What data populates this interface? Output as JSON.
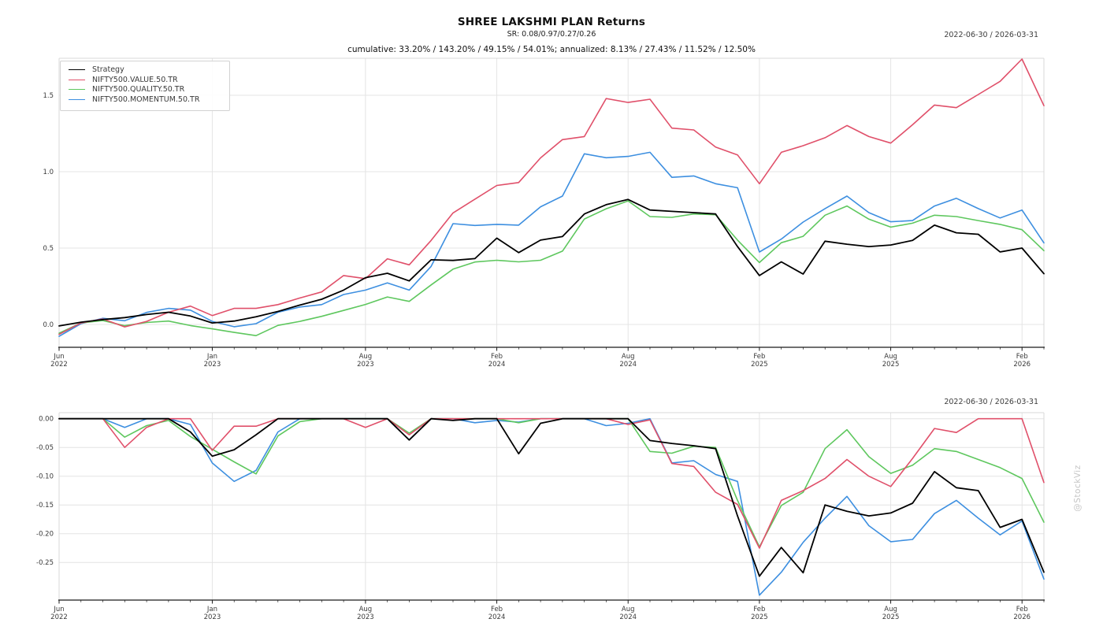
{
  "header": {
    "title": "SHREE LAKSHMI PLAN Returns",
    "sr_line": "SR: 0.08/0.97/0.27/0.26",
    "stats_line": "cumulative: 33.20% / 143.20% / 49.15% / 54.01%; annualized: 8.13% / 27.43% / 11.52% / 12.50%"
  },
  "ranges": {
    "top": "2022-06-30 / 2026-03-31",
    "bottom": "2022-06-30 / 2026-03-31"
  },
  "watermark": "@StockViz",
  "legend": {
    "entries": [
      {
        "label": "Strategy",
        "color": "#000000"
      },
      {
        "label": "NIFTY500.VALUE.50.TR",
        "color": "#e0506a"
      },
      {
        "label": "NIFTY500.QUALITY.50.TR",
        "color": "#5ec75e"
      },
      {
        "label": "NIFTY500.MOMENTUM.50.TR",
        "color": "#3d8fe0"
      }
    ]
  },
  "chart_data": [
    {
      "type": "line",
      "name": "cumulative-returns",
      "title": "SHREE LAKSHMI PLAN Returns",
      "xlabel": "",
      "ylabel": "",
      "ylim": [
        -0.12,
        1.78
      ],
      "grid": true,
      "legend_position": "upper-left",
      "x": [
        "2022-06",
        "2022-07",
        "2022-08",
        "2022-09",
        "2022-10",
        "2022-11",
        "2022-12",
        "2023-01",
        "2023-02",
        "2023-03",
        "2023-04",
        "2023-05",
        "2023-06",
        "2023-07",
        "2023-08",
        "2023-09",
        "2023-10",
        "2023-11",
        "2023-12",
        "2024-01",
        "2024-02",
        "2024-03",
        "2024-04",
        "2024-05",
        "2024-06",
        "2024-07",
        "2024-08",
        "2024-09",
        "2024-10",
        "2024-11",
        "2024-12",
        "2025-01",
        "2025-02",
        "2025-03",
        "2025-04",
        "2025-05",
        "2025-06",
        "2025-07",
        "2025-08",
        "2025-09",
        "2025-10",
        "2025-11",
        "2025-12",
        "2026-01",
        "2026-02",
        "2026-03"
      ],
      "x_ticks": [
        {
          "index": 0,
          "month": "Jun",
          "year": "2022"
        },
        {
          "index": 7,
          "month": "Jan",
          "year": "2023"
        },
        {
          "index": 14,
          "month": "Aug",
          "year": "2023"
        },
        {
          "index": 20,
          "month": "Feb",
          "year": "2024"
        },
        {
          "index": 26,
          "month": "Aug",
          "year": "2024"
        },
        {
          "index": 32,
          "month": "Feb",
          "year": "2025"
        },
        {
          "index": 38,
          "month": "Aug",
          "year": "2025"
        },
        {
          "index": 44,
          "month": "Feb",
          "year": "2026"
        }
      ],
      "yticks": [
        {
          "v": 0.0,
          "label": "0.0"
        },
        {
          "v": 0.5,
          "label": "0.5"
        },
        {
          "v": 1.0,
          "label": "1.0"
        },
        {
          "v": 1.5,
          "label": "1.5"
        }
      ],
      "series": [
        {
          "name": "Strategy",
          "color": "#000000",
          "values": [
            -0.01,
            0.015,
            0.032,
            0.045,
            0.065,
            0.08,
            0.055,
            0.01,
            0.022,
            0.05,
            0.085,
            0.127,
            0.165,
            0.225,
            0.306,
            0.335,
            0.285,
            0.423,
            0.419,
            0.431,
            0.565,
            0.47,
            0.552,
            0.575,
            0.723,
            0.784,
            0.818,
            0.749,
            0.74,
            0.732,
            0.723,
            0.51,
            0.32,
            0.41,
            0.33,
            0.545,
            0.525,
            0.51,
            0.52,
            0.55,
            0.65,
            0.6,
            0.59,
            0.475,
            0.5,
            0.332
          ]
        },
        {
          "name": "NIFTY500.VALUE.50.TR",
          "color": "#e0506a",
          "values": [
            -0.065,
            0.01,
            0.036,
            -0.016,
            0.02,
            0.08,
            0.12,
            0.058,
            0.105,
            0.105,
            0.13,
            0.173,
            0.213,
            0.32,
            0.3,
            0.43,
            0.39,
            0.55,
            0.73,
            0.82,
            0.91,
            0.929,
            1.09,
            1.21,
            1.23,
            1.479,
            1.453,
            1.474,
            1.285,
            1.273,
            1.161,
            1.11,
            0.921,
            1.127,
            1.17,
            1.222,
            1.302,
            1.23,
            1.187,
            1.307,
            1.436,
            1.419,
            1.505,
            1.591,
            1.737,
            1.432
          ]
        },
        {
          "name": "NIFTY500.QUALITY.50.TR",
          "color": "#5ec75e",
          "values": [
            -0.057,
            0.01,
            0.025,
            -0.008,
            0.013,
            0.022,
            -0.007,
            -0.029,
            -0.052,
            -0.073,
            -0.006,
            0.02,
            0.053,
            0.092,
            0.131,
            0.18,
            0.151,
            0.259,
            0.362,
            0.409,
            0.42,
            0.41,
            0.42,
            0.48,
            0.69,
            0.757,
            0.809,
            0.706,
            0.701,
            0.723,
            0.718,
            0.552,
            0.405,
            0.535,
            0.577,
            0.715,
            0.775,
            0.689,
            0.637,
            0.663,
            0.715,
            0.706,
            0.68,
            0.655,
            0.62,
            0.483
          ]
        },
        {
          "name": "NIFTY500.MOMENTUM.50.TR",
          "color": "#3d8fe0",
          "values": [
            -0.078,
            0.005,
            0.04,
            0.024,
            0.079,
            0.105,
            0.094,
            0.02,
            -0.015,
            0.005,
            0.08,
            0.114,
            0.13,
            0.196,
            0.225,
            0.272,
            0.225,
            0.38,
            0.66,
            0.648,
            0.655,
            0.65,
            0.77,
            0.84,
            1.117,
            1.091,
            1.1,
            1.127,
            0.963,
            0.972,
            0.921,
            0.895,
            0.474,
            0.559,
            0.67,
            0.758,
            0.84,
            0.732,
            0.672,
            0.68,
            0.775,
            0.826,
            0.758,
            0.697,
            0.749,
            0.534
          ]
        }
      ]
    },
    {
      "type": "line",
      "name": "drawdown",
      "title": "",
      "xlabel": "",
      "ylabel": "",
      "ylim": [
        -0.31,
        0.012
      ],
      "grid": true,
      "legend_position": "none",
      "x": [
        "2022-06",
        "2022-07",
        "2022-08",
        "2022-09",
        "2022-10",
        "2022-11",
        "2022-12",
        "2023-01",
        "2023-02",
        "2023-03",
        "2023-04",
        "2023-05",
        "2023-06",
        "2023-07",
        "2023-08",
        "2023-09",
        "2023-10",
        "2023-11",
        "2023-12",
        "2024-01",
        "2024-02",
        "2024-03",
        "2024-04",
        "2024-05",
        "2024-06",
        "2024-07",
        "2024-08",
        "2024-09",
        "2024-10",
        "2024-11",
        "2024-12",
        "2025-01",
        "2025-02",
        "2025-03",
        "2025-04",
        "2025-05",
        "2025-06",
        "2025-07",
        "2025-08",
        "2025-09",
        "2025-10",
        "2025-11",
        "2025-12",
        "2026-01",
        "2026-02",
        "2026-03"
      ],
      "x_ticks": [
        {
          "index": 0,
          "month": "Jun",
          "year": "2022"
        },
        {
          "index": 7,
          "month": "Jan",
          "year": "2023"
        },
        {
          "index": 14,
          "month": "Aug",
          "year": "2023"
        },
        {
          "index": 20,
          "month": "Feb",
          "year": "2024"
        },
        {
          "index": 26,
          "month": "Aug",
          "year": "2024"
        },
        {
          "index": 32,
          "month": "Feb",
          "year": "2025"
        },
        {
          "index": 38,
          "month": "Aug",
          "year": "2025"
        },
        {
          "index": 44,
          "month": "Feb",
          "year": "2026"
        }
      ],
      "yticks": [
        {
          "v": 0.0,
          "label": "0.00"
        },
        {
          "v": -0.05,
          "label": "-0.05"
        },
        {
          "v": -0.1,
          "label": "-0.10"
        },
        {
          "v": -0.15,
          "label": "-0.15"
        },
        {
          "v": -0.2,
          "label": "-0.20"
        },
        {
          "v": -0.25,
          "label": "-0.25"
        }
      ],
      "series": [
        {
          "name": "Strategy",
          "color": "#000000",
          "values": [
            0,
            0,
            0,
            0,
            0,
            0,
            -0.023,
            -0.065,
            -0.054,
            -0.028,
            0,
            0,
            0,
            0,
            0,
            0,
            -0.037,
            0,
            -0.003,
            0,
            0,
            -0.061,
            -0.008,
            0,
            0,
            0,
            0,
            -0.038,
            -0.043,
            -0.047,
            -0.052,
            -0.169,
            -0.274,
            -0.224,
            -0.268,
            -0.15,
            -0.161,
            -0.169,
            -0.164,
            -0.147,
            -0.092,
            -0.12,
            -0.125,
            -0.189,
            -0.175,
            -0.267
          ]
        },
        {
          "name": "NIFTY500.VALUE.50.TR",
          "color": "#e0506a",
          "values": [
            0,
            0,
            0,
            -0.05,
            -0.015,
            0,
            0,
            -0.055,
            -0.013,
            -0.013,
            0,
            0,
            0,
            0,
            -0.015,
            0,
            -0.028,
            0,
            0,
            0,
            0,
            0,
            0,
            0,
            0,
            0,
            -0.01,
            -0.002,
            -0.078,
            -0.083,
            -0.128,
            -0.149,
            -0.225,
            -0.142,
            -0.125,
            -0.104,
            -0.071,
            -0.1,
            -0.118,
            -0.069,
            -0.017,
            -0.024,
            0,
            0,
            0,
            -0.111
          ]
        },
        {
          "name": "NIFTY500.QUALITY.50.TR",
          "color": "#5ec75e",
          "values": [
            0,
            0,
            0,
            -0.032,
            -0.012,
            -0.003,
            -0.031,
            -0.053,
            -0.075,
            -0.096,
            -0.03,
            -0.005,
            0,
            0,
            0,
            0,
            -0.025,
            0,
            0,
            0,
            0,
            -0.007,
            0,
            0,
            0,
            0,
            0,
            -0.057,
            -0.06,
            -0.048,
            -0.05,
            -0.142,
            -0.223,
            -0.151,
            -0.128,
            -0.052,
            -0.019,
            -0.066,
            -0.095,
            -0.081,
            -0.052,
            -0.057,
            -0.071,
            -0.085,
            -0.104,
            -0.18
          ]
        },
        {
          "name": "NIFTY500.MOMENTUM.50.TR",
          "color": "#3d8fe0",
          "values": [
            0,
            0,
            0,
            -0.015,
            0,
            0,
            -0.01,
            -0.077,
            -0.109,
            -0.09,
            -0.023,
            0,
            0,
            0,
            0,
            0,
            -0.037,
            0,
            0,
            -0.007,
            -0.003,
            -0.006,
            0,
            0,
            0,
            -0.012,
            -0.008,
            0,
            -0.077,
            -0.073,
            -0.097,
            -0.109,
            -0.307,
            -0.267,
            -0.215,
            -0.173,
            -0.135,
            -0.186,
            -0.214,
            -0.21,
            -0.165,
            -0.142,
            -0.173,
            -0.202,
            -0.178,
            -0.279
          ]
        }
      ]
    }
  ]
}
